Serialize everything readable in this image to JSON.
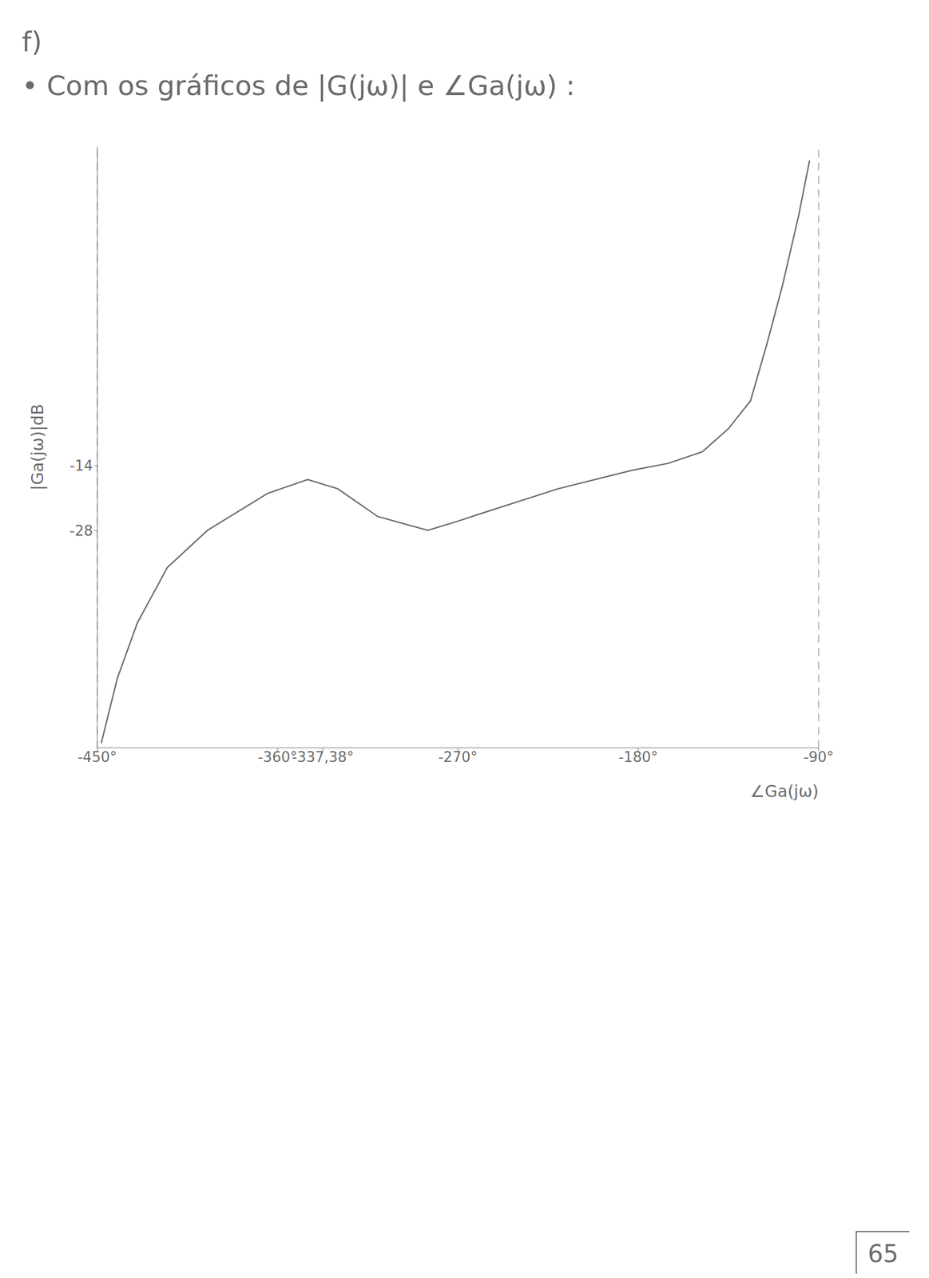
{
  "header": {
    "item": "f)",
    "text": "• Com os gráficos de |G(jω)| e ∠Ga(jω) :"
  },
  "page_number": "65",
  "chart_data": {
    "type": "line",
    "xlabel": "∠Ga(jω)",
    "ylabel": "|Ga(jω)|dB",
    "x": [
      -94.5,
      -100,
      -108,
      -116,
      -124,
      -135,
      -148,
      -165,
      -183,
      -220,
      -256,
      -270,
      -285,
      -310,
      -330,
      -345,
      -365,
      -395,
      -415,
      -430,
      -440,
      -448
    ],
    "values": [
      52,
      40,
      25,
      12,
      0,
      -6,
      -11,
      -13.5,
      -15,
      -19,
      -24,
      -26,
      -28,
      -25,
      -19,
      -17,
      -20,
      -28,
      -36,
      -48,
      -60,
      -74
    ],
    "color": "#6b6b6b",
    "marker": "none",
    "line_style": "solid",
    "xlim": [
      -450,
      -90
    ],
    "xticks": [
      {
        "value": -450,
        "label": "-450°"
      },
      {
        "value": -360,
        "label": "-360°"
      },
      {
        "value": -337.38,
        "label": "-337,38°"
      },
      {
        "value": -270,
        "label": "-270°"
      },
      {
        "value": -180,
        "label": "-180°"
      },
      {
        "value": -90,
        "label": "-90°"
      }
    ],
    "ylim": [
      -75,
      55
    ],
    "yticks": [
      -28,
      -14
    ],
    "grid": false
  }
}
